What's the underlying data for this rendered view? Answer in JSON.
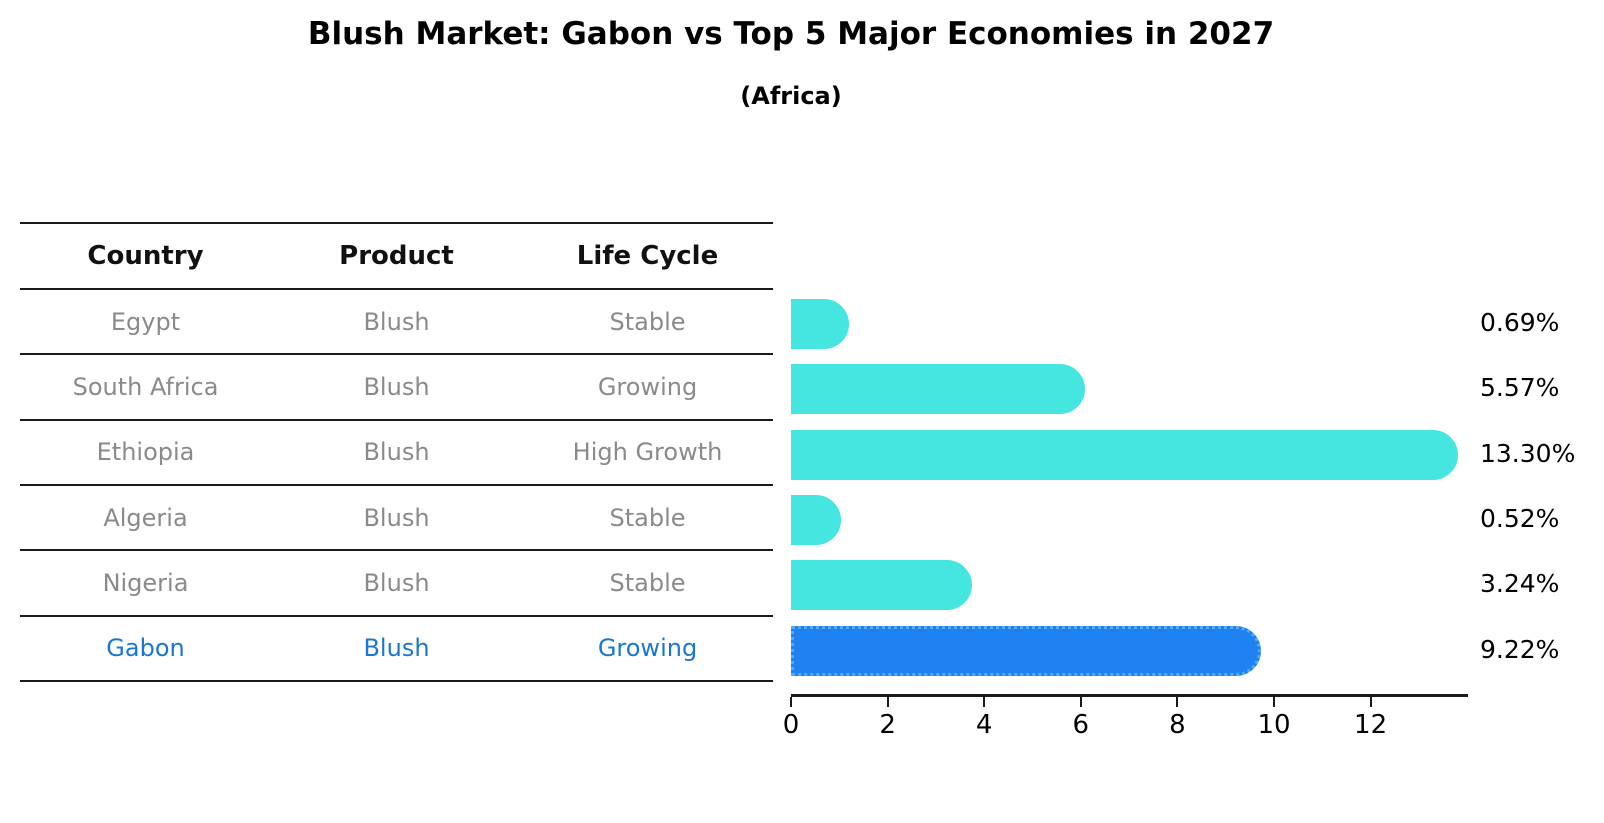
{
  "title": "Blush Market: Gabon vs Top 5 Major Economies in 2027",
  "subtitle": "(Africa)",
  "table": {
    "headers": [
      "Country",
      "Product",
      "Life Cycle"
    ],
    "rows": [
      {
        "country": "Egypt",
        "product": "Blush",
        "life_cycle": "Stable",
        "highlight": false
      },
      {
        "country": "South Africa",
        "product": "Blush",
        "life_cycle": "Growing",
        "highlight": false
      },
      {
        "country": "Ethiopia",
        "product": "Blush",
        "life_cycle": "High Growth",
        "highlight": false
      },
      {
        "country": "Algeria",
        "product": "Blush",
        "life_cycle": "Stable",
        "highlight": false
      },
      {
        "country": "Nigeria",
        "product": "Blush",
        "life_cycle": "Stable",
        "highlight": false
      },
      {
        "country": "Gabon",
        "product": "Blush",
        "life_cycle": "Growing",
        "highlight": true
      }
    ]
  },
  "chart_data": {
    "type": "bar",
    "orientation": "horizontal",
    "title": "Blush Market: Gabon vs Top 5 Major Economies in 2027",
    "subtitle": "(Africa)",
    "categories": [
      "Egypt",
      "South Africa",
      "Ethiopia",
      "Algeria",
      "Nigeria",
      "Gabon"
    ],
    "values": [
      0.69,
      5.57,
      13.3,
      0.52,
      3.24,
      9.22
    ],
    "value_labels": [
      "0.69%",
      "5.57%",
      "13.30%",
      "0.52%",
      "3.24%",
      "9.22%"
    ],
    "xlabel": "",
    "ylabel": "",
    "xlim": [
      0,
      14
    ],
    "x_ticks": [
      0,
      2,
      4,
      6,
      8,
      10,
      12
    ],
    "grid": false,
    "legend": false,
    "highlight_index": 5,
    "colors": {
      "bar": "#45E6DF",
      "highlight_bar": "#1E82F0",
      "highlight_edge": "#59A9F2",
      "highlight_text": "#1B76D2",
      "row_text": "#8A8A8A",
      "line": "#1A1A1A"
    }
  }
}
